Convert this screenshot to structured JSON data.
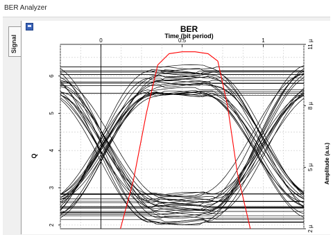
{
  "window": {
    "title": "BER Analyzer"
  },
  "side_tab": {
    "label": "Signal"
  },
  "chart_data": {
    "type": "line",
    "title": "BER",
    "xlabel": "Time (bit period)",
    "ylabel": "Q",
    "y2label": "Amplitude (a.u.)",
    "xlim": [
      -0.25,
      1.25
    ],
    "ylim": [
      1.9,
      6.85
    ],
    "x_ticks": [
      {
        "v": 0,
        "label": "0"
      },
      {
        "v": 0.5,
        "label": "0.5"
      },
      {
        "v": 1,
        "label": "1"
      }
    ],
    "y_ticks": [
      {
        "v": 2,
        "label": "2"
      },
      {
        "v": 3,
        "label": "3"
      },
      {
        "v": 4,
        "label": "4"
      },
      {
        "v": 5,
        "label": "5"
      },
      {
        "v": 6,
        "label": "6"
      }
    ],
    "y2_ticks": [
      {
        "v": 1.9,
        "label": "2 µ"
      },
      {
        "v": 3.55,
        "label": "5 µ"
      },
      {
        "v": 5.2,
        "label": "8 µ"
      },
      {
        "v": 6.85,
        "label": "11 µ"
      }
    ],
    "grid": true,
    "series": [
      {
        "type": "eye-diagram",
        "color": "#000000",
        "high_level": 5.9,
        "low_level": 2.45,
        "crossing_x": [
          0.02,
          0.98
        ],
        "crossing_y": 4.15,
        "trace_count": 60
      },
      {
        "type": "q-factor",
        "color": "#ff0000",
        "x": [
          0.12,
          0.2,
          0.28,
          0.35,
          0.42,
          0.5,
          0.58,
          0.66,
          0.72,
          0.78,
          0.84,
          0.92
        ],
        "y": [
          1.9,
          3.2,
          5.0,
          6.3,
          6.6,
          6.65,
          6.65,
          6.6,
          6.4,
          5.2,
          3.4,
          1.9
        ]
      }
    ]
  }
}
